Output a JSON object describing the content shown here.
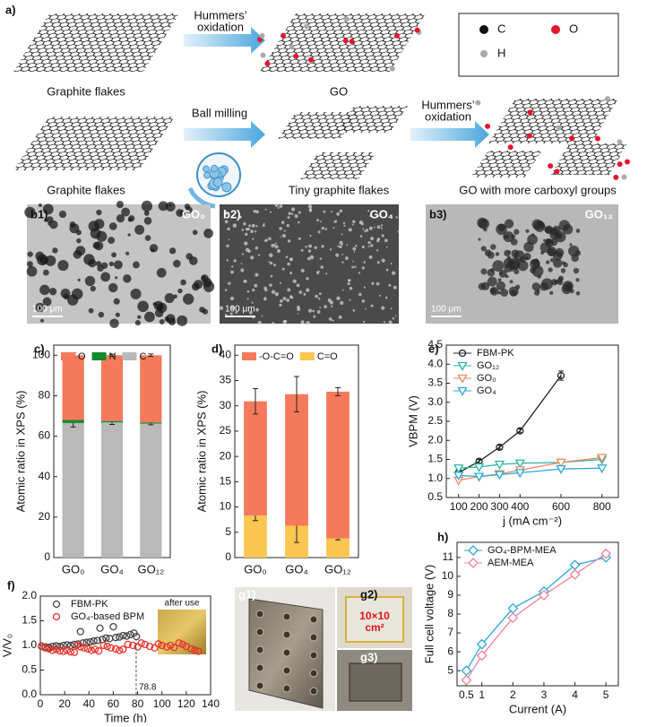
{
  "schematic": {
    "label": "a)",
    "row1": {
      "arrow_label": [
        "Hummers’",
        "oxidation"
      ],
      "left": "Graphite flakes",
      "right": "GO"
    },
    "legend": [
      "C",
      "O",
      "H"
    ],
    "row2": {
      "arrow1_label": "Ball milling",
      "left": "Graphite flakes",
      "middle": "Tiny graphite flakes",
      "arrow2_label": [
        "Hummers’",
        "oxidation"
      ],
      "right": "GO with more carboxyl groups"
    }
  },
  "sem_panels": [
    {
      "label": "b1)",
      "sample": "GO₀",
      "scale": "100 μm"
    },
    {
      "label": "b2)",
      "sample": "GO₄",
      "scale": "100 μm"
    },
    {
      "label": "b3)",
      "sample": "GO₁₂",
      "scale": "100 μm"
    }
  ],
  "photo_panels": [
    {
      "label": "g1)"
    },
    {
      "label": "g2)",
      "note": [
        "10×10",
        "cm²"
      ]
    },
    {
      "label": "g3)"
    }
  ],
  "chart_data": [
    {
      "panel": "c)",
      "type": "stacked-bar",
      "categories": [
        "GO₀",
        "GO₄",
        "GO₁₂"
      ],
      "series": [
        {
          "name": "C",
          "color": "#b9b9b9",
          "values": [
            66.5,
            66.8,
            66.2
          ],
          "errors": [
            2,
            1,
            0.6
          ]
        },
        {
          "name": "N",
          "color": "#138a2c",
          "values": [
            1.5,
            0.7,
            0.6
          ]
        },
        {
          "name": "O",
          "color": "#f57a5c",
          "values": [
            32,
            32.5,
            33.2
          ],
          "errors": [
            1.2,
            0.5,
            0.6
          ]
        }
      ],
      "ylim": [
        0,
        105
      ],
      "yticks": [
        0,
        20,
        40,
        60,
        80,
        100
      ],
      "ylabel": "Atomic ratio in XPS (%)",
      "legend": "top"
    },
    {
      "panel": "d)",
      "type": "stacked-bar",
      "categories": [
        "GO₀",
        "GO₄",
        "GO₁₂"
      ],
      "series": [
        {
          "name": "C=O",
          "color": "#f9c650",
          "values": [
            8.3,
            6.3,
            3.8
          ],
          "errors": [
            1,
            3.3,
            0.3
          ]
        },
        {
          "name": "-O-C=O",
          "color": "#f57a5c",
          "values": [
            22.6,
            26,
            29
          ],
          "errors": [
            2.5,
            3.5,
            0.8
          ]
        }
      ],
      "ylim": [
        0,
        42
      ],
      "yticks": [
        0,
        5,
        10,
        15,
        20,
        25,
        30,
        35,
        40
      ],
      "ylabel": "Atomic ratio in XPS (%)",
      "legend": "top"
    },
    {
      "panel": "e)",
      "type": "line",
      "series": [
        {
          "name": "FBM-PK",
          "color": "#222222",
          "marker": "circle",
          "x": [
            100,
            200,
            300,
            400,
            600
          ],
          "values": [
            1.15,
            1.45,
            1.82,
            2.25,
            3.7
          ],
          "errors": [
            0.08,
            0.05,
            0.05,
            0.05,
            0.12
          ]
        },
        {
          "name": "GO₁₂",
          "color": "#2bb5a0",
          "marker": "triangle-down",
          "x": [
            100,
            200,
            300,
            400,
            600,
            800
          ],
          "values": [
            1.27,
            1.3,
            1.37,
            1.4,
            1.42,
            1.5
          ]
        },
        {
          "name": "GO₀",
          "color": "#f08a60",
          "marker": "triangle-down",
          "x": [
            100,
            200,
            300,
            400,
            600,
            800
          ],
          "values": [
            0.95,
            1.05,
            1.12,
            1.22,
            1.42,
            1.55
          ]
        },
        {
          "name": "GO₄",
          "color": "#2aa8d8",
          "marker": "triangle-down",
          "x": [
            100,
            200,
            300,
            400,
            600,
            800
          ],
          "values": [
            1.08,
            1.05,
            1.1,
            1.15,
            1.25,
            1.27
          ]
        }
      ],
      "xlim": [
        40,
        880
      ],
      "xticks": [
        100,
        200,
        300,
        400,
        600,
        800
      ],
      "ylim": [
        0.5,
        4.5
      ],
      "yticks": [
        0.5,
        {
          "value": 1,
          "label": "1.0"
        },
        1.5,
        {
          "value": 2,
          "label": "2.0"
        },
        2.5,
        {
          "value": 3,
          "label": "3.0"
        },
        3.5,
        {
          "value": 4,
          "label": "4.0"
        },
        4.5
      ],
      "xlabel": "j (mA cm⁻²)",
      "ylabel": "VBPM (V)",
      "legend": "top-left"
    },
    {
      "panel": "f)",
      "type": "scatter",
      "series": [
        {
          "name": "FBM-PK",
          "color": "#444444",
          "marker": "circle",
          "x": [
            1,
            4,
            7,
            10,
            13,
            16,
            19,
            22,
            25,
            28,
            31,
            33,
            35,
            38,
            41,
            44,
            47,
            49,
            51,
            54,
            57,
            60,
            62,
            65,
            68,
            71,
            74,
            77,
            79
          ],
          "values": [
            0.98,
            0.97,
            0.96,
            0.98,
            0.99,
            0.98,
            1.0,
            1.01,
            1.0,
            1.02,
            1.03,
            1.28,
            1.05,
            1.06,
            1.07,
            1.09,
            1.1,
            1.35,
            1.12,
            1.15,
            1.14,
            1.38,
            1.16,
            1.17,
            1.2,
            1.19,
            1.22,
            1.25,
            1.18
          ]
        },
        {
          "name": "GO₄-based BPM",
          "color": "#e8312a",
          "marker": "circle",
          "x": [
            1,
            4,
            7,
            10,
            13,
            16,
            19,
            22,
            25,
            28,
            30,
            33,
            36,
            39,
            42,
            45,
            48,
            52,
            55,
            58,
            62,
            65,
            68,
            72,
            76,
            80,
            83,
            86,
            90,
            94,
            97,
            100,
            104,
            107,
            110,
            114,
            117,
            120,
            124,
            127,
            130
          ],
          "values": [
            0.99,
            0.95,
            0.93,
            0.9,
            0.92,
            0.89,
            0.88,
            0.9,
            0.87,
            0.86,
            1.0,
            0.97,
            0.95,
            0.93,
            0.9,
            0.92,
            0.89,
            1.0,
            0.98,
            0.95,
            0.93,
            0.9,
            0.92,
            1.02,
            1.0,
            0.97,
            1.05,
            1.02,
            0.98,
            0.95,
            1.03,
            1.0,
            0.97,
            1.0,
            0.96,
            1.05,
            1.02,
            0.98,
            0.93,
            0.9,
            0.88
          ]
        }
      ],
      "xlim": [
        0,
        140
      ],
      "xticks": [
        0,
        20,
        40,
        60,
        80,
        100,
        120,
        140
      ],
      "ylim": [
        0,
        2
      ],
      "yticks": [
        {
          "value": 0,
          "label": "0.0"
        },
        0.5,
        {
          "value": 1,
          "label": "1.0"
        },
        1.5,
        {
          "value": 2,
          "label": "2.0"
        }
      ],
      "xlabel": "Time (h)",
      "ylabel": "V/V₀",
      "legend": "top-left",
      "annotations": [
        {
          "text": "78.8",
          "x": 78.8
        },
        {
          "text": "after use"
        }
      ]
    },
    {
      "panel": "h)",
      "type": "line",
      "x": [
        0.5,
        1,
        2,
        3,
        4,
        5
      ],
      "series": [
        {
          "name": "GO₄-BPM-MEA",
          "color": "#2aa8d8",
          "marker": "diamond",
          "values": [
            5.0,
            6.4,
            8.3,
            9.2,
            10.6,
            11.0
          ]
        },
        {
          "name": "AEM-MEA",
          "color": "#f0829a",
          "marker": "diamond",
          "values": [
            4.5,
            5.8,
            7.8,
            9.0,
            10.1,
            11.2
          ]
        }
      ],
      "xlim": [
        0.2,
        5.4
      ],
      "xticks": [
        0.5,
        1,
        2,
        3,
        4,
        5
      ],
      "ylim": [
        4.2,
        11.8
      ],
      "yticks": [
        5,
        6,
        7,
        8,
        9,
        10,
        11
      ],
      "xlabel": "Current (A)",
      "ylabel": "Full cell voltage (V)",
      "legend": "top-left"
    }
  ]
}
